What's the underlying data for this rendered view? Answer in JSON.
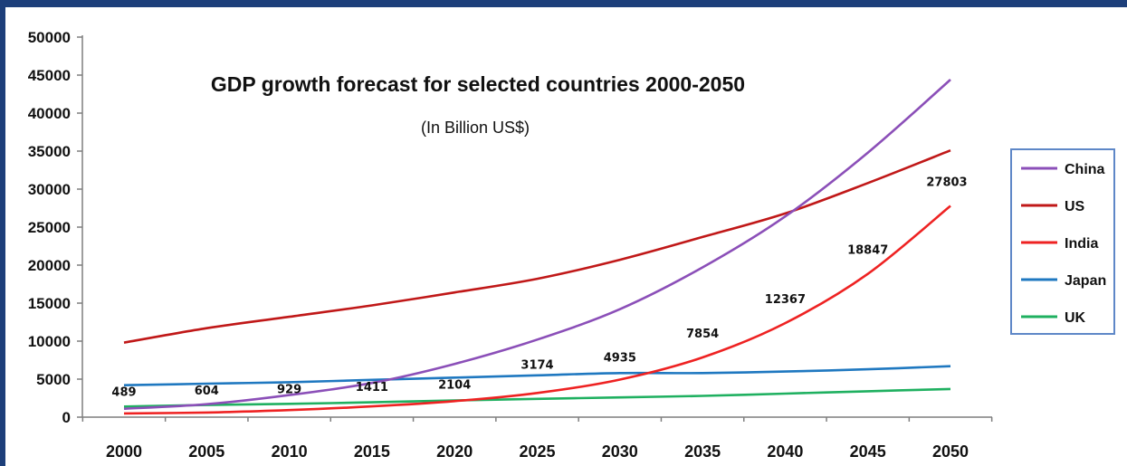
{
  "chart_data": {
    "type": "line",
    "title": "GDP growth forecast for selected countries 2000-2050",
    "subtitle": "(In Billion US$)",
    "xlabel": "",
    "ylabel": "",
    "x": [
      "2000",
      "2005",
      "2010",
      "2015",
      "2020",
      "2025",
      "2030",
      "2035",
      "2040",
      "2045",
      "2050"
    ],
    "ylim": [
      0,
      50000
    ],
    "yticks": [
      "0",
      "5000",
      "10000",
      "15000",
      "20000",
      "25000",
      "30000",
      "35000",
      "40000",
      "45000",
      "50000"
    ],
    "grid": false,
    "legend": "right",
    "series": [
      {
        "name": "China",
        "color": "#8b4fb8",
        "values": [
          1100,
          1700,
          2900,
          4500,
          7000,
          10200,
          14200,
          19700,
          26400,
          34800,
          44400
        ]
      },
      {
        "name": "US",
        "color": "#c01818",
        "values": [
          9800,
          11700,
          13200,
          14700,
          16400,
          18200,
          20700,
          23700,
          26800,
          30800,
          35100
        ]
      },
      {
        "name": "India",
        "color": "#ee2222",
        "values": [
          489,
          604,
          929,
          1411,
          2104,
          3174,
          4935,
          7854,
          12367,
          18847,
          27803
        ],
        "data_labels": [
          "489",
          "604",
          "929",
          "1411",
          "2104",
          "3174",
          "4935",
          "7854",
          "12367",
          "18847",
          "27803"
        ]
      },
      {
        "name": "Japan",
        "color": "#1f78c0",
        "values": [
          4200,
          4400,
          4600,
          4900,
          5200,
          5500,
          5800,
          5800,
          6000,
          6300,
          6700
        ]
      },
      {
        "name": "UK",
        "color": "#1fb060",
        "values": [
          1400,
          1600,
          1750,
          1950,
          2200,
          2400,
          2600,
          2800,
          3100,
          3400,
          3700
        ]
      }
    ]
  }
}
